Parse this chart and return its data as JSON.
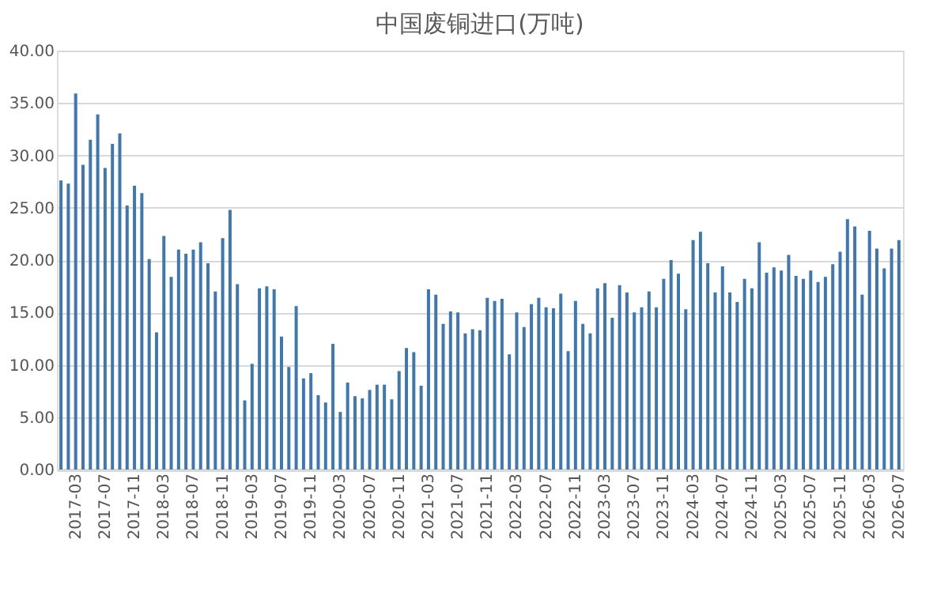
{
  "chart_data": {
    "type": "bar",
    "title": "中国废铜进口(万吨)",
    "categories": [
      null,
      null,
      "2017-03",
      null,
      null,
      null,
      "2017-07",
      null,
      null,
      null,
      "2017-11",
      null,
      null,
      null,
      "2018-03",
      null,
      null,
      null,
      "2018-07",
      null,
      null,
      null,
      "2018-11",
      null,
      null,
      null,
      "2019-03",
      null,
      null,
      null,
      "2019-07",
      null,
      null,
      null,
      "2019-11",
      null,
      null,
      null,
      "2020-03",
      null,
      null,
      null,
      "2020-07",
      null,
      null,
      null,
      "2020-11",
      null,
      null,
      null,
      "2021-03",
      null,
      null,
      null,
      "2021-07",
      null,
      null,
      null,
      "2021-11",
      null,
      null,
      null,
      "2022-03",
      null,
      null,
      null,
      "2022-07",
      null,
      null,
      null,
      "2022-11",
      null,
      null,
      null,
      "2023-03",
      null,
      null,
      null,
      "2023-07",
      null,
      null,
      null,
      "2023-11",
      null,
      null,
      null,
      "2024-03",
      null,
      null,
      null,
      "2024-07",
      null,
      null,
      null,
      "2024-11",
      null,
      null,
      null,
      "2025-03",
      null,
      null,
      null,
      "2025-07",
      null,
      null,
      null,
      "2025-11",
      null,
      null,
      null,
      "2026-03",
      null,
      null,
      null,
      "2026-07"
    ],
    "values": [
      27.6,
      27.3,
      35.9,
      29.1,
      31.5,
      33.9,
      28.8,
      31.1,
      32.1,
      25.2,
      27.1,
      26.4,
      20.1,
      13.1,
      22.3,
      18.4,
      21.0,
      20.6,
      21.0,
      21.7,
      19.7,
      17.0,
      22.1,
      24.8,
      17.7,
      6.6,
      10.1,
      17.3,
      17.5,
      17.2,
      12.7,
      9.8,
      15.6,
      8.7,
      9.2,
      7.1,
      6.4,
      12.0,
      5.5,
      8.3,
      7.0,
      6.8,
      7.6,
      8.1,
      8.1,
      6.7,
      9.4,
      11.6,
      11.2,
      8.0,
      17.2,
      16.7,
      13.9,
      15.1,
      15.0,
      13.0,
      13.4,
      13.3,
      16.4,
      16.1,
      16.3,
      11.0,
      15.0,
      13.6,
      15.8,
      16.4,
      15.5,
      15.4,
      16.8,
      11.3,
      16.1,
      13.9,
      13.0,
      17.3,
      17.8,
      14.5,
      17.6,
      16.9,
      15.0,
      15.5,
      17.0,
      15.5,
      18.2,
      20.0,
      18.7,
      15.3,
      21.9,
      22.7,
      19.7,
      16.9,
      19.4,
      16.9,
      16.0,
      18.2,
      17.3,
      21.7,
      18.8,
      19.3,
      19.0,
      20.5,
      18.5,
      18.2,
      19.0,
      17.9,
      18.4,
      19.6,
      20.8,
      23.9,
      23.2,
      16.7,
      22.8,
      21.1,
      19.2,
      21.1,
      21.9
    ],
    "color": "#3f77b1",
    "ylim": [
      0,
      40
    ],
    "yticks": [
      {
        "value": 0,
        "label": "0.00"
      },
      {
        "value": 5,
        "label": "5.00"
      },
      {
        "value": 10,
        "label": "10.00"
      },
      {
        "value": 15,
        "label": "15.00"
      },
      {
        "value": 20,
        "label": "20.00"
      },
      {
        "value": 25,
        "label": "25.00"
      },
      {
        "value": 30,
        "label": "30.00"
      },
      {
        "value": 35,
        "label": "35.00"
      },
      {
        "value": 40,
        "label": "40.00"
      }
    ],
    "grid": "y"
  }
}
